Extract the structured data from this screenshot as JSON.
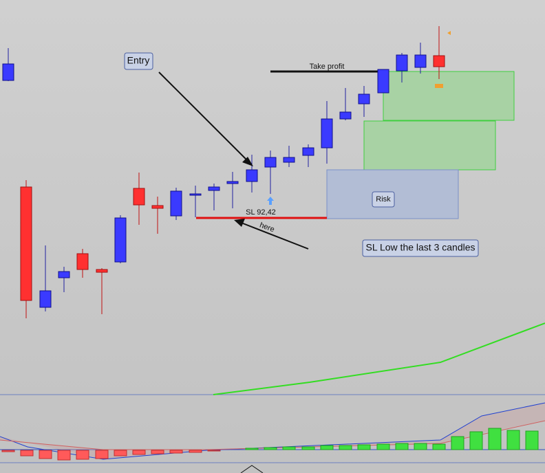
{
  "annotations": {
    "entry": "Entry",
    "take_profit": "Take profit",
    "stop_loss": "SL 92,42",
    "here": "here",
    "risk": "Risk",
    "note": "SL  Low the last  3 candles"
  }
}
